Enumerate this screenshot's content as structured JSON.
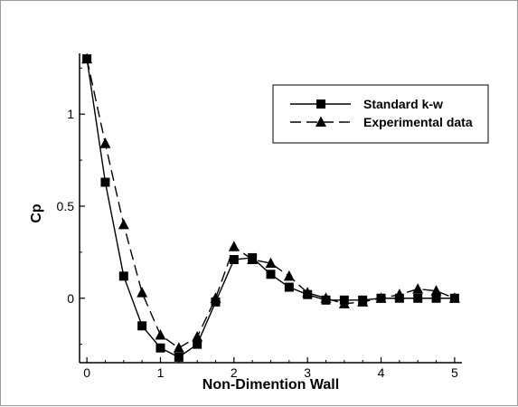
{
  "chart_data": {
    "type": "line",
    "xlabel": "Non-Dimention Wall",
    "ylabel": "Cp",
    "xlim": [
      -0.1,
      5.1
    ],
    "ylim": [
      -0.35,
      1.33
    ],
    "x_ticks": [
      0,
      1,
      2,
      3,
      4,
      5
    ],
    "y_ticks": [
      0,
      0.5,
      1
    ],
    "x_tick_labels": [
      "0",
      "1",
      "2",
      "3",
      "4",
      "5"
    ],
    "y_tick_labels": [
      "0",
      "0.5",
      "1"
    ],
    "grid": false,
    "legend_position": "top-right",
    "series": [
      {
        "name": "Standard k-w",
        "marker": "square",
        "line_style": "solid",
        "color": "#000000",
        "x": [
          0,
          0.25,
          0.5,
          0.75,
          1.0,
          1.25,
          1.5,
          1.75,
          2.0,
          2.25,
          2.5,
          2.75,
          3.0,
          3.25,
          3.5,
          3.75,
          4.0,
          4.25,
          4.5,
          4.75,
          5.0
        ],
        "y": [
          1.3,
          0.63,
          0.12,
          -0.15,
          -0.27,
          -0.32,
          -0.25,
          -0.02,
          0.21,
          0.22,
          0.13,
          0.06,
          0.02,
          -0.01,
          -0.01,
          -0.01,
          0.0,
          0.0,
          0.0,
          0.0,
          0.0
        ]
      },
      {
        "name": "Experimental data",
        "marker": "triangle",
        "line_style": "dashed",
        "color": "#000000",
        "x": [
          0,
          0.25,
          0.5,
          0.75,
          1.0,
          1.25,
          1.5,
          1.75,
          2.0,
          2.25,
          2.5,
          2.75,
          3.0,
          3.25,
          3.5,
          3.75,
          4.0,
          4.25,
          4.5,
          4.75,
          5.0
        ],
        "y": [
          1.3,
          0.84,
          0.4,
          0.03,
          -0.2,
          -0.27,
          -0.21,
          0.0,
          0.28,
          0.21,
          0.19,
          0.12,
          0.03,
          0.0,
          -0.03,
          -0.02,
          0.0,
          0.02,
          0.05,
          0.04,
          0.0
        ]
      }
    ]
  }
}
